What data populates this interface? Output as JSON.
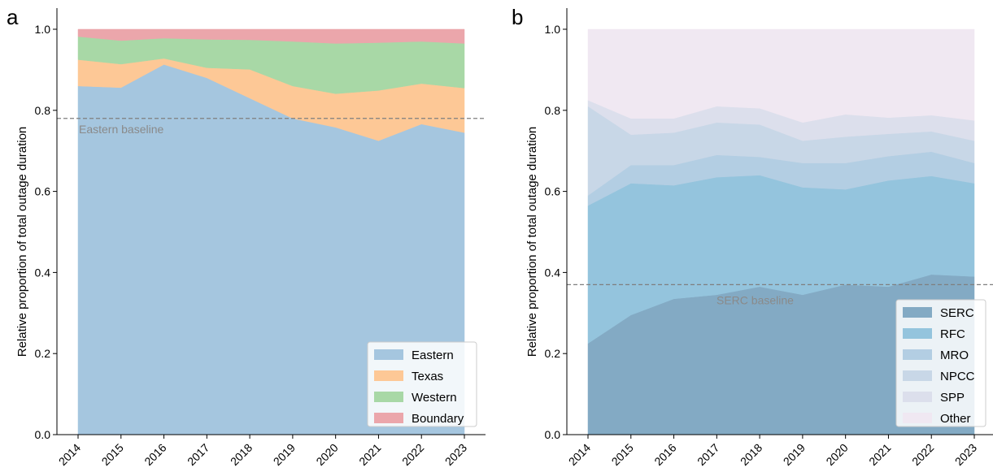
{
  "chart_data": [
    {
      "panel": "a",
      "type": "area",
      "stacked": true,
      "normalized": true,
      "x": [
        2014,
        2015,
        2016,
        2017,
        2018,
        2019,
        2020,
        2021,
        2022,
        2023
      ],
      "series": [
        {
          "name": "Eastern",
          "color": "#a5c6df",
          "values": [
            0.86,
            0.856,
            0.913,
            0.88,
            0.83,
            0.78,
            0.758,
            0.725,
            0.766,
            0.745
          ]
        },
        {
          "name": "Texas",
          "color": "#fdc896",
          "values": [
            0.065,
            0.058,
            0.015,
            0.025,
            0.071,
            0.08,
            0.083,
            0.124,
            0.1,
            0.11
          ]
        },
        {
          "name": "Western",
          "color": "#a8d8a6",
          "values": [
            0.057,
            0.058,
            0.05,
            0.07,
            0.073,
            0.11,
            0.124,
            0.118,
            0.104,
            0.11
          ]
        },
        {
          "name": "Boundary",
          "color": "#eba6ab",
          "values": [
            0.018,
            0.028,
            0.022,
            0.025,
            0.026,
            0.03,
            0.035,
            0.033,
            0.03,
            0.035
          ]
        }
      ],
      "ylabel": "Relative proportion of total outage duration",
      "xlabel": "",
      "ylim": [
        0,
        1.0
      ],
      "yticks": [
        0.0,
        0.2,
        0.4,
        0.6,
        0.8,
        1.0
      ],
      "baseline": {
        "value": 0.78,
        "label": "Eastern baseline"
      },
      "legend_position": "lower-right"
    },
    {
      "panel": "b",
      "type": "area",
      "stacked": true,
      "normalized": true,
      "x": [
        2014,
        2015,
        2016,
        2017,
        2018,
        2019,
        2020,
        2021,
        2022,
        2023
      ],
      "series": [
        {
          "name": "SERC",
          "color": "#83aac4",
          "values": [
            0.225,
            0.295,
            0.335,
            0.345,
            0.365,
            0.345,
            0.37,
            0.365,
            0.395,
            0.39
          ]
        },
        {
          "name": "RFC",
          "color": "#94c4dd",
          "values": [
            0.34,
            0.325,
            0.28,
            0.29,
            0.275,
            0.265,
            0.235,
            0.262,
            0.243,
            0.23
          ]
        },
        {
          "name": "MRO",
          "color": "#b3cee3",
          "values": [
            0.025,
            0.045,
            0.05,
            0.055,
            0.045,
            0.06,
            0.065,
            0.06,
            0.06,
            0.05
          ]
        },
        {
          "name": "NPCC",
          "color": "#c8d7e7",
          "values": [
            0.22,
            0.075,
            0.08,
            0.08,
            0.08,
            0.055,
            0.065,
            0.055,
            0.05,
            0.055
          ]
        },
        {
          "name": "SPP",
          "color": "#dcdfec",
          "values": [
            0.015,
            0.04,
            0.035,
            0.04,
            0.04,
            0.045,
            0.055,
            0.04,
            0.04,
            0.05
          ]
        },
        {
          "name": "Other",
          "color": "#f0e8f2",
          "values": [
            0.175,
            0.22,
            0.22,
            0.19,
            0.195,
            0.23,
            0.21,
            0.218,
            0.212,
            0.225
          ]
        }
      ],
      "ylabel": "Relative proportion of total outage duration",
      "xlabel": "",
      "ylim": [
        0,
        1.0
      ],
      "yticks": [
        0.0,
        0.2,
        0.4,
        0.6,
        0.8,
        1.0
      ],
      "baseline": {
        "value": 0.37,
        "label": "SERC baseline"
      },
      "legend_position": "lower-right"
    }
  ]
}
